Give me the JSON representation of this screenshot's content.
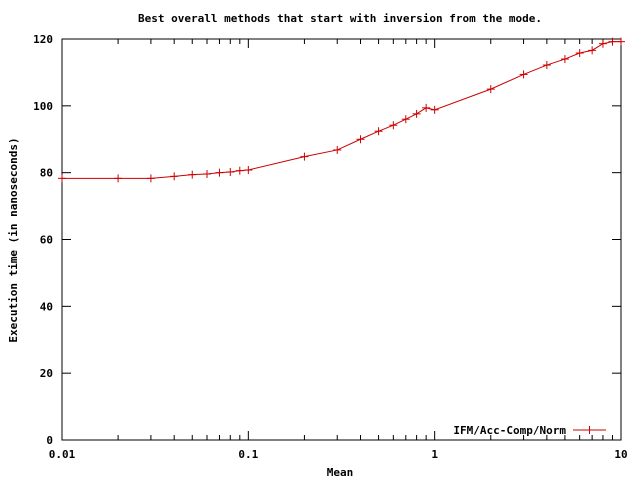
{
  "chart_data": {
    "type": "line",
    "title": "Best overall methods that start with inversion from the mode.",
    "xlabel": "Mean",
    "ylabel": "Execution time (in nanoseconds)",
    "x_scale": "log",
    "xlim": [
      0.01,
      10
    ],
    "ylim": [
      0,
      120
    ],
    "x_ticks": [
      "0.01",
      "0.1",
      "1",
      "10"
    ],
    "y_ticks": [
      "0",
      "20",
      "40",
      "60",
      "80",
      "100",
      "120"
    ],
    "grid": false,
    "legend_position": "bottom-right",
    "colors": {
      "series": "#cc0000",
      "axis": "#000000"
    },
    "series": [
      {
        "name": "IFM/Acc-Comp/Norm",
        "x": [
          0.01,
          0.02,
          0.03,
          0.04,
          0.05,
          0.06,
          0.07,
          0.08,
          0.09,
          0.1,
          0.2,
          0.3,
          0.4,
          0.5,
          0.6,
          0.7,
          0.8,
          0.9,
          1,
          2,
          3,
          4,
          5,
          6,
          7,
          8,
          9,
          10
        ],
        "y": [
          78.3,
          78.3,
          78.3,
          78.9,
          79.4,
          79.6,
          80.0,
          80.2,
          80.6,
          80.8,
          84.8,
          86.8,
          90.0,
          92.4,
          94.2,
          96.0,
          97.6,
          99.4,
          98.8,
          105.0,
          109.4,
          112.2,
          114.0,
          115.8,
          116.6,
          118.6,
          119.2,
          119.2
        ]
      }
    ]
  }
}
